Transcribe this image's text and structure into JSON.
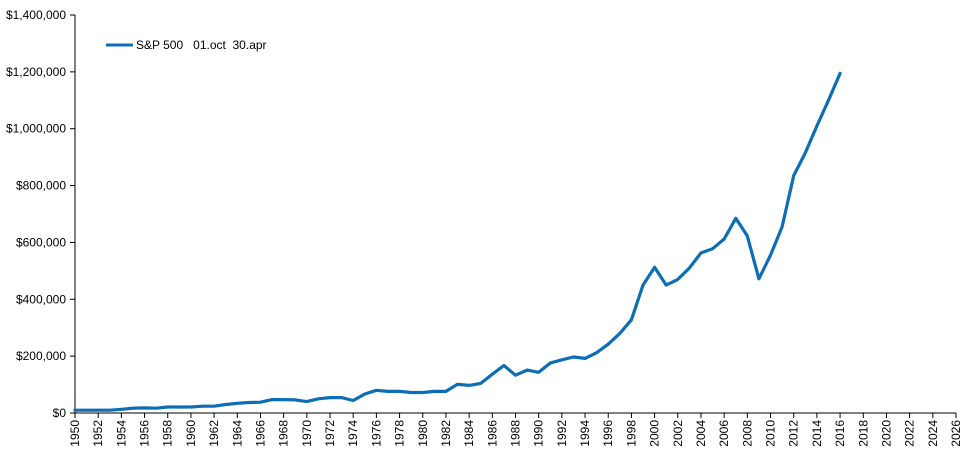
{
  "chart_data": {
    "type": "line",
    "title": "",
    "xlabel": "",
    "ylabel": "",
    "xlim": [
      1950,
      2026
    ],
    "ylim": [
      0,
      1400000
    ],
    "x_ticks": [
      1950,
      1952,
      1954,
      1956,
      1958,
      1960,
      1962,
      1964,
      1966,
      1968,
      1970,
      1972,
      1974,
      1976,
      1978,
      1980,
      1982,
      1984,
      1986,
      1988,
      1990,
      1992,
      1994,
      1996,
      1998,
      2000,
      2002,
      2004,
      2006,
      2008,
      2010,
      2012,
      2014,
      2016,
      2018,
      2020,
      2022,
      2024,
      2026
    ],
    "x_tick_labels": [
      "1950",
      "1952",
      "1954",
      "1956",
      "1958",
      "1960",
      "1962",
      "1964",
      "1966",
      "1968",
      "1970",
      "1972",
      "1974",
      "1976",
      "1978",
      "1980",
      "1982",
      "1984",
      "1986",
      "1988",
      "1990",
      "1992",
      "1994",
      "1996",
      "1998",
      "2000",
      "2002",
      "2004",
      "2006",
      "2008",
      "2010",
      "2012",
      "2014",
      "2016",
      "2018",
      "2020",
      "2022",
      "2024",
      "2026"
    ],
    "y_ticks": [
      0,
      200000,
      400000,
      600000,
      800000,
      1000000,
      1200000,
      1400000
    ],
    "y_tick_labels": [
      "$0",
      "$200,000",
      "$400,000",
      "$600,000",
      "$800,000",
      "$1,000,000",
      "$1,200,000",
      "$1,400,000"
    ],
    "grid": false,
    "legend": "top-left",
    "series": [
      {
        "name": "S&P 500   01.oct  30.apr",
        "color": "#0D6EB5",
        "x": [
          1950,
          1951,
          1952,
          1953,
          1954,
          1955,
          1956,
          1957,
          1958,
          1959,
          1960,
          1961,
          1962,
          1963,
          1964,
          1965,
          1966,
          1967,
          1968,
          1969,
          1970,
          1971,
          1972,
          1973,
          1974,
          1975,
          1976,
          1977,
          1978,
          1979,
          1980,
          1981,
          1982,
          1983,
          1984,
          1985,
          1986,
          1987,
          1988,
          1989,
          1990,
          1991,
          1992,
          1993,
          1994,
          1995,
          1996,
          1997,
          1998,
          1999,
          2000,
          2001,
          2002,
          2003,
          2004,
          2005,
          2006,
          2007,
          2008,
          2009,
          2010,
          2011,
          2012,
          2013,
          2014,
          2015,
          2016
        ],
        "values": [
          10000,
          10000,
          10000,
          10000,
          13000,
          17000,
          18000,
          17000,
          21000,
          21000,
          21000,
          24000,
          24000,
          30000,
          34000,
          37000,
          38000,
          47000,
          47000,
          46000,
          40000,
          50000,
          54000,
          54000,
          44000,
          67000,
          80000,
          76000,
          76000,
          72000,
          72000,
          76000,
          76000,
          101000,
          97000,
          104000,
          136000,
          167000,
          133000,
          151000,
          143000,
          176000,
          187000,
          197000,
          192000,
          212000,
          242000,
          280000,
          328000,
          450000,
          513000,
          450000,
          470000,
          510000,
          563000,
          578000,
          612000,
          685000,
          623000,
          472000,
          555000,
          655000,
          835000,
          915000,
          1010000,
          1100000,
          1195000
        ]
      }
    ]
  }
}
